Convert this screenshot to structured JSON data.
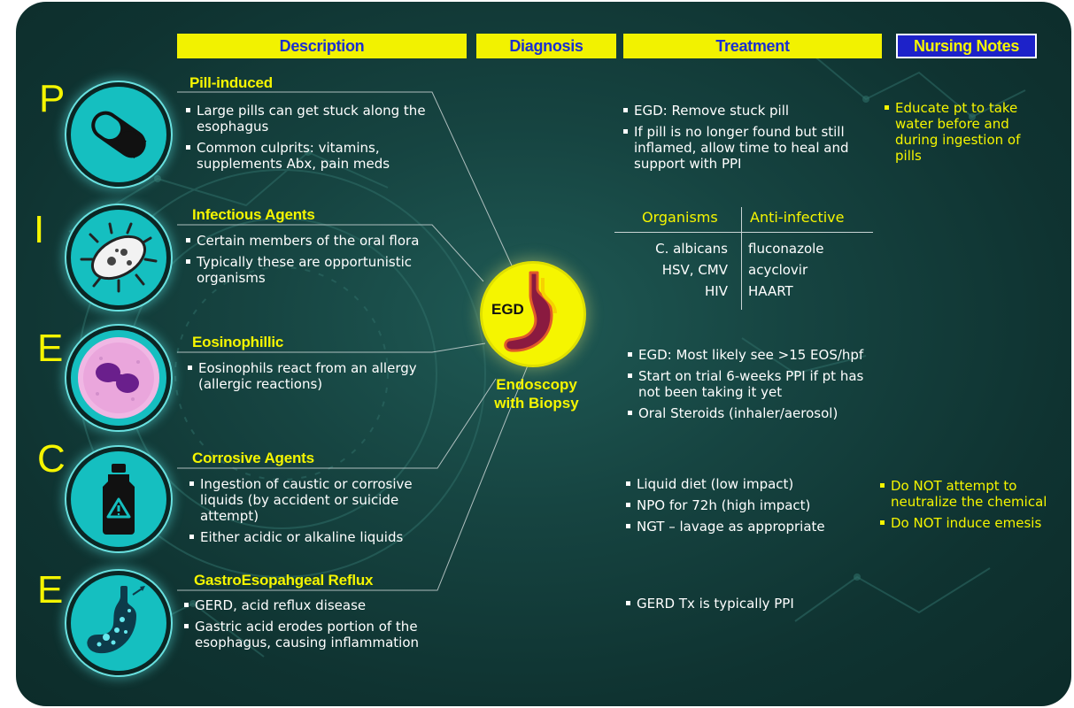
{
  "headers": {
    "description": "Description",
    "diagnosis": "Diagnosis",
    "treatment": "Treatment",
    "nursing": "Nursing Notes"
  },
  "rows": [
    {
      "letter": "P",
      "icon": "pill-icon",
      "title": "Pill-induced",
      "bullets": [
        "Large pills can get stuck along the esophagus",
        "Common culprits: vitamins, supplements Abx, pain meds"
      ],
      "treatment": [
        "EGD: Remove stuck pill",
        "If pill is no longer found but still inflamed, allow time to heal and support with PPI"
      ],
      "nursing": [
        "Educate pt to take water before and during ingestion of pills"
      ]
    },
    {
      "letter": "I",
      "icon": "microbe-icon",
      "title": "Infectious Agents",
      "bullets": [
        "Certain members of the oral flora",
        "Typically these are opportunistic organisms"
      ]
    },
    {
      "letter": "E",
      "icon": "eosinophil-icon",
      "title": "Eosinophillic",
      "bullets": [
        "Eosinophils react from an allergy (allergic reactions)"
      ],
      "treatment": [
        "EGD: Most likely see >15 EOS/hpf",
        "Start on trial 6-weeks PPI if pt has not been taking it yet",
        "Oral Steroids (inhaler/aerosol)"
      ]
    },
    {
      "letter": "C",
      "icon": "caustic-bottle-icon",
      "title": "Corrosive Agents",
      "bullets": [
        "Ingestion of caustic or corrosive liquids (by accident or suicide attempt)",
        "Either acidic or alkaline liquids"
      ],
      "treatment": [
        "Liquid diet (low impact)",
        "NPO for 72h (high impact)",
        "NGT – lavage as appropriate"
      ],
      "nursing": [
        "Do NOT attempt to neutralize the chemical",
        "Do NOT induce emesis"
      ]
    },
    {
      "letter": "E",
      "icon": "stomach-reflux-icon",
      "title": "GastroEsopahgeal Reflux",
      "bullets": [
        "GERD, acid reflux disease",
        "Gastric acid erodes portion of the esophagus, causing inflammation"
      ],
      "treatment": [
        "GERD Tx is typically PPI"
      ]
    }
  ],
  "infectious_table": {
    "headers": [
      "Organisms",
      "Anti-infective"
    ],
    "rows": [
      [
        "C. albicans",
        "fluconazole"
      ],
      [
        "HSV, CMV",
        "acyclovir"
      ],
      [
        "HIV",
        "HAART"
      ]
    ]
  },
  "diagnosis": {
    "badge": "EGD",
    "label": "Endoscopy with Biopsy",
    "icon": "stomach-icon"
  },
  "colors": {
    "accent_yellow": "#f5f500",
    "header_blue": "#1a2fd1",
    "teal": "#15bfc0",
    "background": "#164441"
  }
}
